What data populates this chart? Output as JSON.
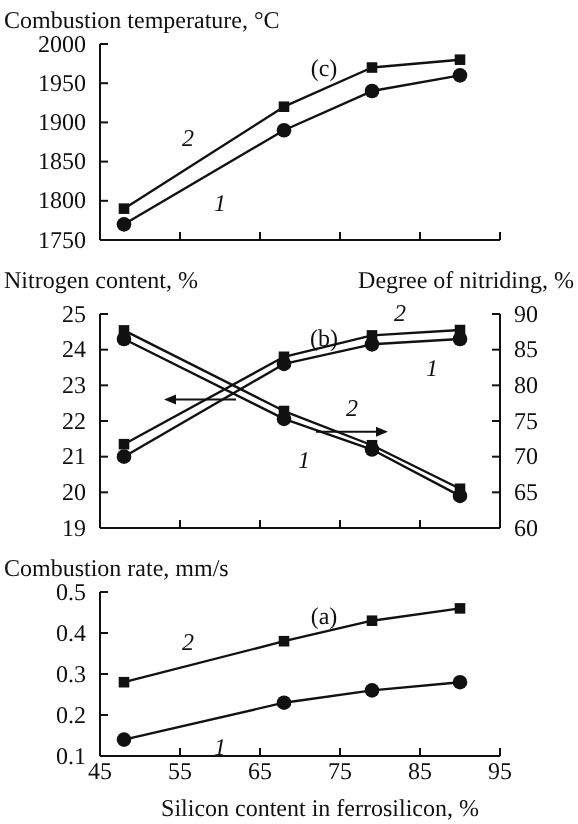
{
  "chart_data": [
    {
      "type": "line",
      "ylabel": "Combustion temperature, °C",
      "annotations": [
        "(c)"
      ],
      "x": [
        48,
        68,
        79,
        90
      ],
      "xlim": [
        45,
        95
      ],
      "xticks": [
        45,
        55,
        65,
        75,
        85,
        95
      ],
      "ylim": [
        1750,
        2000
      ],
      "yticks": [
        1750,
        1800,
        1850,
        1900,
        1950,
        2000
      ],
      "tick_labels": "y",
      "series": [
        {
          "name": "2",
          "color": "#111111",
          "marker": "square",
          "values": [
            1790,
            1920,
            1970,
            1980
          ]
        },
        {
          "name": "1",
          "color": "#111111",
          "marker": "circle",
          "values": [
            1770,
            1890,
            1940,
            1960
          ]
        }
      ]
    },
    {
      "type": "line",
      "ylabel": "Nitrogen content, %",
      "y2label": "Degree of nitriding, %",
      "annotations": [
        "(b)"
      ],
      "x": [
        48,
        68,
        79,
        90
      ],
      "xlim": [
        45,
        95
      ],
      "xticks": [
        45,
        55,
        65,
        75,
        85,
        95
      ],
      "ylim": [
        19,
        25
      ],
      "yticks": [
        19,
        20,
        21,
        22,
        23,
        24,
        25
      ],
      "y2lim": [
        60,
        90
      ],
      "y2ticks": [
        60,
        65,
        70,
        75,
        80,
        85,
        90
      ],
      "tick_labels": "y",
      "series": [
        {
          "name": "2",
          "color": "#111111",
          "marker": "square",
          "values": [
            21.35,
            23.8,
            24.4,
            24.55
          ]
        },
        {
          "name": "1",
          "color": "#111111",
          "marker": "circle",
          "values": [
            21.0,
            23.6,
            24.15,
            24.3
          ]
        },
        {
          "name": "1",
          "color": "#111111",
          "marker": "circle",
          "axis": "y2",
          "values": [
            86.5,
            75.3,
            71.0,
            64.5
          ]
        },
        {
          "name": "2",
          "color": "#111111",
          "marker": "square",
          "axis": "y2",
          "values": [
            87.7,
            76.4,
            71.6,
            65.5
          ]
        }
      ]
    },
    {
      "type": "line",
      "ylabel": "Combustion rate, mm/s",
      "xlabel": "Silicon content in ferrosilicon, %",
      "annotations": [
        "(a)"
      ],
      "x": [
        48,
        68,
        79,
        90
      ],
      "xlim": [
        45,
        95
      ],
      "xticks": [
        45,
        55,
        65,
        75,
        85,
        95
      ],
      "ylim": [
        0.1,
        0.5
      ],
      "yticks": [
        0.1,
        0.2,
        0.3,
        0.4,
        0.5
      ],
      "series": [
        {
          "name": "2",
          "color": "#111111",
          "marker": "square",
          "values": [
            0.28,
            0.38,
            0.43,
            0.46
          ]
        },
        {
          "name": "1",
          "color": "#111111",
          "marker": "circle",
          "values": [
            0.14,
            0.23,
            0.26,
            0.28
          ]
        }
      ]
    }
  ]
}
